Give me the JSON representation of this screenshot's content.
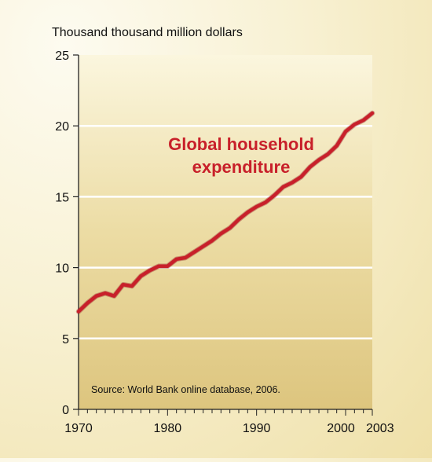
{
  "chart_data": {
    "type": "line",
    "title": "",
    "ylabel": "Thousand thousand million dollars",
    "xlabel": "",
    "annotation": "Global household expenditure",
    "source": "Source: World Bank online database, 2006.",
    "x_ticks": [
      "1970",
      "1980",
      "1990",
      "2000",
      "2003"
    ],
    "y_ticks": [
      "0",
      "5",
      "10",
      "15",
      "20",
      "25"
    ],
    "xlim": [
      1970,
      2003
    ],
    "ylim": [
      0,
      25
    ],
    "grid": true,
    "line_color": "#c8202a",
    "series": [
      {
        "name": "Global household expenditure",
        "x": [
          1970,
          1971,
          1972,
          1973,
          1974,
          1975,
          1976,
          1977,
          1978,
          1979,
          1980,
          1981,
          1982,
          1983,
          1984,
          1985,
          1986,
          1987,
          1988,
          1989,
          1990,
          1991,
          1992,
          1993,
          1994,
          1995,
          1996,
          1997,
          1998,
          1999,
          2000,
          2001,
          2002,
          2003
        ],
        "values": [
          6.9,
          7.5,
          8.0,
          8.2,
          8.0,
          8.8,
          8.7,
          9.4,
          9.8,
          10.1,
          10.1,
          10.6,
          10.7,
          11.1,
          11.5,
          11.9,
          12.4,
          12.8,
          13.4,
          13.9,
          14.3,
          14.6,
          15.1,
          15.7,
          16.0,
          16.4,
          17.1,
          17.6,
          18.0,
          18.6,
          19.6,
          20.1,
          20.4,
          20.9
        ]
      }
    ]
  }
}
